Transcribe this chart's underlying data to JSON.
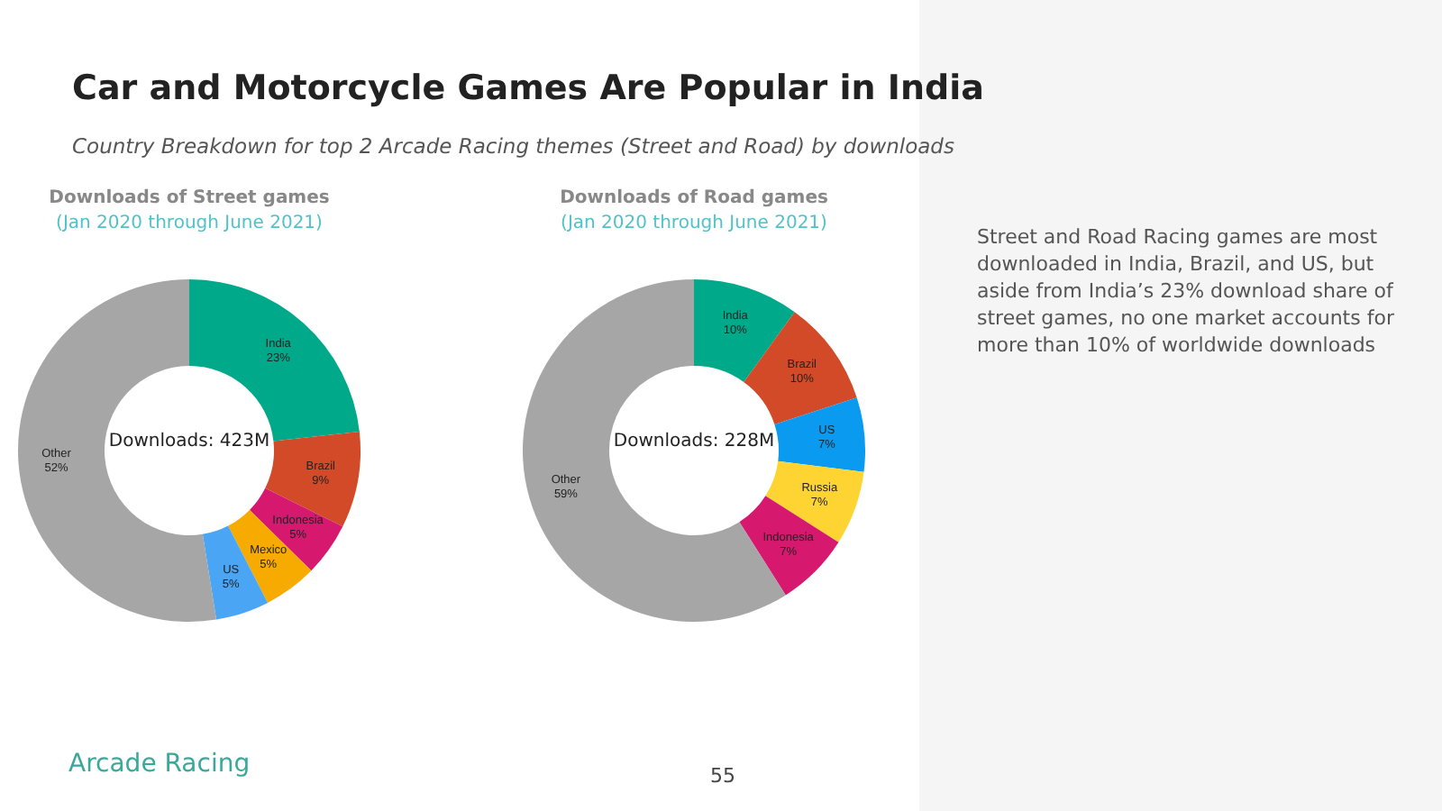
{
  "chart_data": [
    {
      "type": "donut",
      "title": "Downloads of Street games",
      "subtitle": "(Jan 2020 through June 2021)",
      "annotations": [
        "Downloads: 423M"
      ],
      "categories": [
        "India",
        "Brazil",
        "Indonesia",
        "Mexico",
        "US",
        "Other"
      ],
      "values": [
        23,
        9,
        5,
        5,
        5,
        52
      ],
      "value_labels": [
        "23%",
        "9%",
        "5%",
        "5%",
        "5%",
        "52%"
      ],
      "colors": [
        "#00a98a",
        "#d24a27",
        "#d6196f",
        "#f7ab00",
        "#4aa5f5",
        "#a6a6a6"
      ]
    },
    {
      "type": "donut",
      "title": "Downloads of Road games",
      "subtitle": "(Jan 2020 through June 2021)",
      "annotations": [
        "Downloads: 228M"
      ],
      "categories": [
        "India",
        "Brazil",
        "US",
        "Russia",
        "Indonesia",
        "Other"
      ],
      "values": [
        10,
        10,
        7,
        7,
        7,
        59
      ],
      "value_labels": [
        "10%",
        "10%",
        "7%",
        "7%",
        "7%",
        "59%"
      ],
      "colors": [
        "#00a98a",
        "#d24a27",
        "#0a9af0",
        "#fdd431",
        "#d6196f",
        "#a6a6a6"
      ]
    },
    {
      "type": "other",
      "title": "Car and Motorcycle Games Are Popular in India",
      "subtitle": "Country Breakdown for top 2 Arcade Racing themes (Street and Road) by downloads",
      "annotations": [
        "Street and Road Racing games are most downloaded in India, Brazil, and US, but aside from India’s 23% download share of street games, no one market accounts for more than 10% of worldwide downloads",
        "Arcade Racing",
        "55"
      ]
    }
  ]
}
